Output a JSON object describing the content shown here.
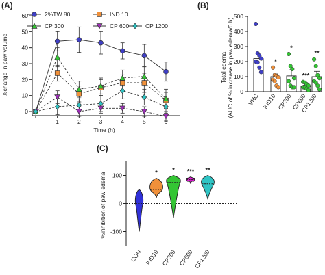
{
  "colors": {
    "tw80": "#3f3fc6",
    "ind10": "#f0903a",
    "cp300": "#34c534",
    "cp600": "#9b2fb5",
    "cp1200": "#2fc4c4",
    "con": "#3030d8",
    "cp600_violin": "#e21bd6"
  },
  "chart_data": [
    {
      "panel": "(A)",
      "type": "line",
      "x": [
        0,
        1,
        2,
        3,
        4,
        5,
        6
      ],
      "xticks": [
        "",
        "1",
        "2",
        "3",
        "4",
        "5",
        "6"
      ],
      "xlabel": "Time (h)",
      "ylabel": "%change in paw volume",
      "ylim": [
        0,
        60
      ],
      "yticks": [
        "0",
        "10",
        "20",
        "30",
        "40",
        "50",
        "60"
      ],
      "legend": "top",
      "series": [
        {
          "name": "2%TW 80",
          "marker": "circle",
          "color": "#3f3fc6",
          "values": [
            0,
            44,
            45,
            43,
            38,
            35,
            25
          ],
          "err": [
            0,
            6,
            8,
            7,
            5,
            7,
            6
          ]
        },
        {
          "name": "IND 10",
          "marker": "square",
          "color": "#f0903a",
          "values": [
            0,
            24,
            11,
            15,
            18,
            18,
            7
          ],
          "err": [
            0,
            5,
            5,
            5,
            5,
            6,
            5
          ]
        },
        {
          "name": "CP 300",
          "marker": "triangle-up",
          "color": "#34c534",
          "values": [
            0,
            34,
            14,
            16,
            21,
            22,
            8
          ],
          "err": [
            0,
            6,
            5,
            5,
            5,
            6,
            6
          ]
        },
        {
          "name": "CP 600",
          "marker": "triangle-down",
          "color": "#9b2fb5",
          "values": [
            0,
            9,
            0,
            2,
            2,
            0,
            -3
          ],
          "err": [
            0,
            4,
            3,
            3,
            3,
            3,
            3
          ]
        },
        {
          "name": "CP 1200",
          "marker": "diamond",
          "color": "#2fc4c4",
          "values": [
            0,
            3,
            4,
            5,
            13,
            9,
            3
          ],
          "err": [
            0,
            5,
            4,
            5,
            5,
            5,
            4
          ]
        }
      ]
    },
    {
      "panel": "(B)",
      "type": "bar",
      "categories": [
        "VHC",
        "IND10",
        "CP300",
        "CP600",
        "CP1200"
      ],
      "values": [
        220,
        100,
        105,
        35,
        100
      ],
      "err": [
        30,
        18,
        40,
        8,
        35
      ],
      "significance": [
        "",
        "*",
        "*",
        "***",
        "**"
      ],
      "points": [
        [
          450,
          255,
          240,
          220,
          200,
          195,
          160,
          130
        ],
        [
          160,
          110,
          105,
          95,
          80,
          70,
          40,
          30
        ],
        [
          250,
          170,
          150,
          90,
          70,
          40,
          30,
          30
        ],
        [
          65,
          60,
          50,
          40,
          30,
          25,
          20,
          10
        ],
        [
          215,
          170,
          110,
          90,
          70,
          60,
          40,
          15
        ]
      ],
      "ylabel": "Total edema\n(AUC of % increase in paw edema/6 h)",
      "ylim": [
        0,
        500
      ],
      "yticks": [
        "0",
        "100",
        "200",
        "300",
        "400",
        "500"
      ]
    },
    {
      "panel": "(C)",
      "type": "violin",
      "categories": [
        "CON",
        "IND10",
        "CP300",
        "CP600",
        "CP1200"
      ],
      "medians": [
        0,
        50,
        75,
        85,
        70
      ],
      "ranges": [
        [
          -100,
          50
        ],
        [
          20,
          90
        ],
        [
          -50,
          100
        ],
        [
          70,
          95
        ],
        [
          15,
          100
        ]
      ],
      "significance": [
        "",
        "*",
        "*",
        "***",
        "**"
      ],
      "ylabel": "%inhibition of paw edema",
      "ylim": [
        -150,
        150
      ],
      "yticks": [
        "-100",
        "0",
        "100"
      ]
    }
  ]
}
